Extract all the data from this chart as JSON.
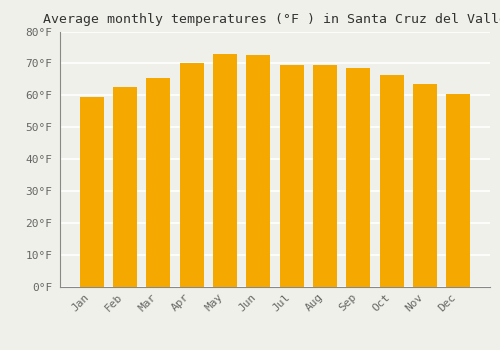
{
  "title": "Average monthly temperatures (°F ) in Santa Cruz del Valle",
  "months": [
    "Jan",
    "Feb",
    "Mar",
    "Apr",
    "May",
    "Jun",
    "Jul",
    "Aug",
    "Sep",
    "Oct",
    "Nov",
    "Dec"
  ],
  "values": [
    59.5,
    62.5,
    65.5,
    70.0,
    73.0,
    72.5,
    69.5,
    69.5,
    68.5,
    66.5,
    63.5,
    60.5
  ],
  "bar_color": "#F5A800",
  "bar_edge_color": "#E09000",
  "ylim": [
    0,
    80
  ],
  "yticks": [
    0,
    10,
    20,
    30,
    40,
    50,
    60,
    70,
    80
  ],
  "background_color": "#F0F0EA",
  "plot_bg_color": "#F0F0EA",
  "grid_color": "#FFFFFF",
  "axis_label_color": "#666666",
  "title_color": "#333333",
  "title_fontsize": 9.5,
  "tick_fontsize": 8,
  "bar_width": 0.72
}
